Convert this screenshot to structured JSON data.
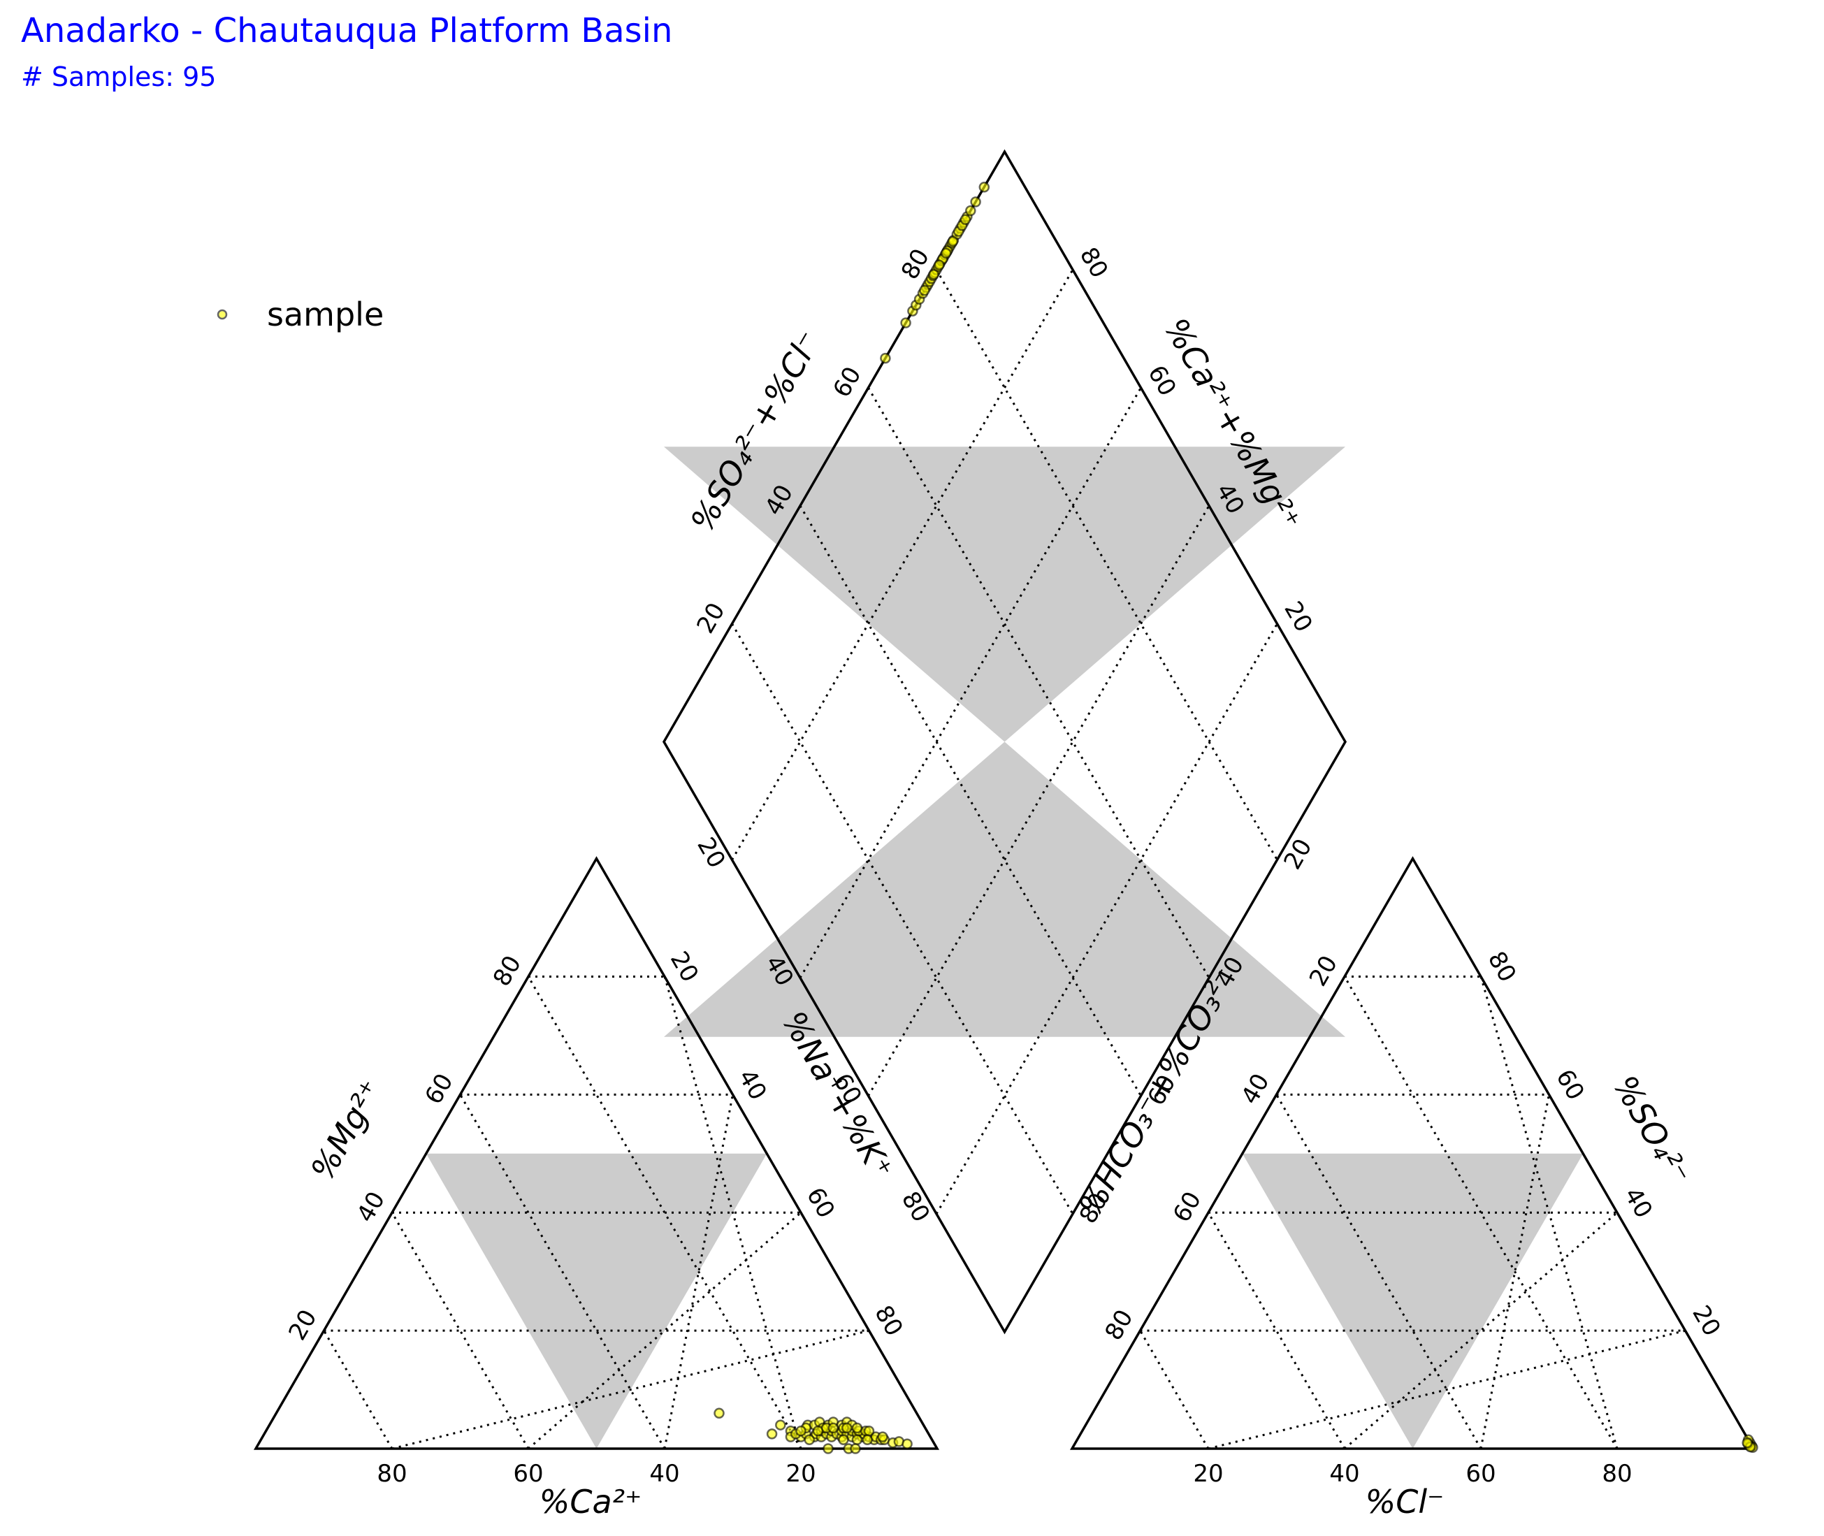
{
  "title": "Anadarko - Chautauqua Platform Basin",
  "subtitle": "# Samples: 95",
  "legend": {
    "label": "sample",
    "position": "upper-left"
  },
  "colors": {
    "marker_fill": "#ffff00",
    "marker_edge": "#000000",
    "region_fill": "#cccccc",
    "frame": "#000000",
    "title": "#0000ff"
  },
  "axes": {
    "ca": "%Ca²⁺",
    "mg": "%Mg²⁺",
    "na_k": "%Na⁺+%K⁺",
    "cl": "%Cl⁻",
    "so4": "%SO₄²⁻",
    "hco3_co3": "%HCO₃⁻+%CO₃²⁻",
    "so4_cl": "%SO₄²⁻+%Cl⁻",
    "ca_mg": "%Ca²⁺+%Mg²⁺"
  },
  "tick_values": [
    "20",
    "40",
    "60",
    "80"
  ],
  "chart_data": {
    "type": "scatter",
    "subtype": "piper-diagram",
    "series": [
      {
        "name": "sample",
        "cation_triangle": {
          "point_order": [
            "Ca",
            "Mg",
            "Na+K"
          ],
          "points": [
            [
              29,
              6,
              65
            ],
            [
              23,
              2.5,
              74.5
            ],
            [
              20,
              3,
              77
            ],
            [
              19,
              2,
              79
            ],
            [
              18,
              2.5,
              79.5
            ],
            [
              17,
              2,
              81
            ],
            [
              16.5,
              2.5,
              81
            ],
            [
              16,
              2,
              82
            ],
            [
              15.5,
              3,
              81.5
            ],
            [
              15,
              2.5,
              82.5
            ],
            [
              14.5,
              2,
              83.5
            ],
            [
              14,
              3,
              83
            ],
            [
              13.5,
              2.5,
              84
            ],
            [
              13,
              2,
              85
            ],
            [
              12.5,
              3,
              84.5
            ],
            [
              12,
              2.5,
              85.5
            ],
            [
              11.5,
              2,
              86.5
            ],
            [
              11,
              3,
              86
            ],
            [
              10.5,
              2.5,
              87
            ],
            [
              10,
              2,
              88
            ],
            [
              9.5,
              2.5,
              88
            ],
            [
              9,
              2,
              89
            ],
            [
              8.5,
              1.5,
              90
            ],
            [
              8,
              2,
              90
            ],
            [
              7.5,
              1.5,
              91
            ],
            [
              7,
              1.5,
              91.5
            ],
            [
              6,
              1,
              93
            ],
            [
              5,
              1.2,
              93.8
            ],
            [
              4,
              0.8,
              95.2
            ],
            [
              17,
              4,
              79
            ],
            [
              16,
              4,
              80
            ],
            [
              15,
              4.5,
              80.5
            ],
            [
              14,
              4,
              82
            ],
            [
              13,
              4.5,
              82.5
            ],
            [
              12,
              4,
              84
            ],
            [
              11,
              4.5,
              84.5
            ],
            [
              10.5,
              4,
              85.5
            ],
            [
              15,
              3.5,
              81.5
            ],
            [
              12,
              3.5,
              84.5
            ],
            [
              10,
              3,
              87
            ],
            [
              9,
              3,
              88
            ],
            [
              11,
              1.5,
              87.5
            ],
            [
              13,
              1.5,
              85.5
            ],
            [
              8.5,
              3,
              88.5
            ],
            [
              18,
              1.5,
              80.5
            ],
            [
              20.5,
              2,
              77.5
            ],
            [
              21,
              4,
              75
            ],
            [
              16,
              0,
              84
            ],
            [
              13,
              0,
              87
            ],
            [
              12,
              0,
              88
            ],
            [
              17.5,
              3.5,
              79
            ],
            [
              14.5,
              3.5,
              82
            ],
            [
              13.5,
              3.5,
              83
            ],
            [
              16,
              3,
              81
            ],
            [
              10,
              3.5,
              86.5
            ],
            [
              9.5,
              1.5,
              89
            ],
            [
              7,
              2,
              91
            ],
            [
              19.5,
              2.5,
              78
            ],
            [
              18.5,
              3,
              78.5
            ],
            [
              11.5,
              3.5,
              85
            ]
          ]
        },
        "anion_triangle": {
          "point_order": [
            "Cl",
            "SO4",
            "HCO3+CO3"
          ],
          "points": [
            [
              99.5,
              0.5,
              0
            ],
            [
              99,
              1,
              0
            ],
            [
              98.5,
              1.5,
              0
            ],
            [
              99.2,
              0.5,
              0.3
            ],
            [
              99.8,
              0.2,
              0
            ],
            [
              98.8,
              0.8,
              0.4
            ],
            [
              99.4,
              0.3,
              0.3
            ],
            [
              98.6,
              1,
              0.4
            ]
          ]
        },
        "diamond": {
          "point_order": [
            "Ca+Mg (of cations)",
            "SO4+Cl (of anions)"
          ],
          "points": [
            [
              35,
              100
            ],
            [
              29,
              100
            ],
            [
              27,
              100
            ],
            [
              26,
              100
            ],
            [
              25,
              100
            ],
            [
              24,
              100
            ],
            [
              23,
              100
            ],
            [
              22.5,
              100
            ],
            [
              22,
              100
            ],
            [
              21.5,
              100
            ],
            [
              21,
              100
            ],
            [
              20.5,
              100
            ],
            [
              20,
              100
            ],
            [
              19.5,
              100
            ],
            [
              19,
              100
            ],
            [
              18.5,
              100
            ],
            [
              18,
              100
            ],
            [
              17.5,
              100
            ],
            [
              17,
              100
            ],
            [
              16.5,
              100
            ],
            [
              16,
              100
            ],
            [
              15.5,
              100
            ],
            [
              15,
              100
            ],
            [
              14,
              100
            ],
            [
              13,
              100
            ],
            [
              12,
              100
            ],
            [
              11,
              100
            ],
            [
              10,
              100
            ],
            [
              8.5,
              100
            ],
            [
              6,
              100
            ],
            [
              23.5,
              100
            ],
            [
              18.2,
              100
            ],
            [
              16.8,
              100
            ],
            [
              15.2,
              100
            ],
            [
              13.5,
              100
            ],
            [
              12.5,
              100
            ],
            [
              11.5,
              100
            ],
            [
              20.8,
              100
            ],
            [
              19.2,
              100
            ],
            [
              17.2,
              100
            ]
          ]
        }
      }
    ],
    "grid": true,
    "grid_style": "dotted",
    "region_shading": true
  }
}
